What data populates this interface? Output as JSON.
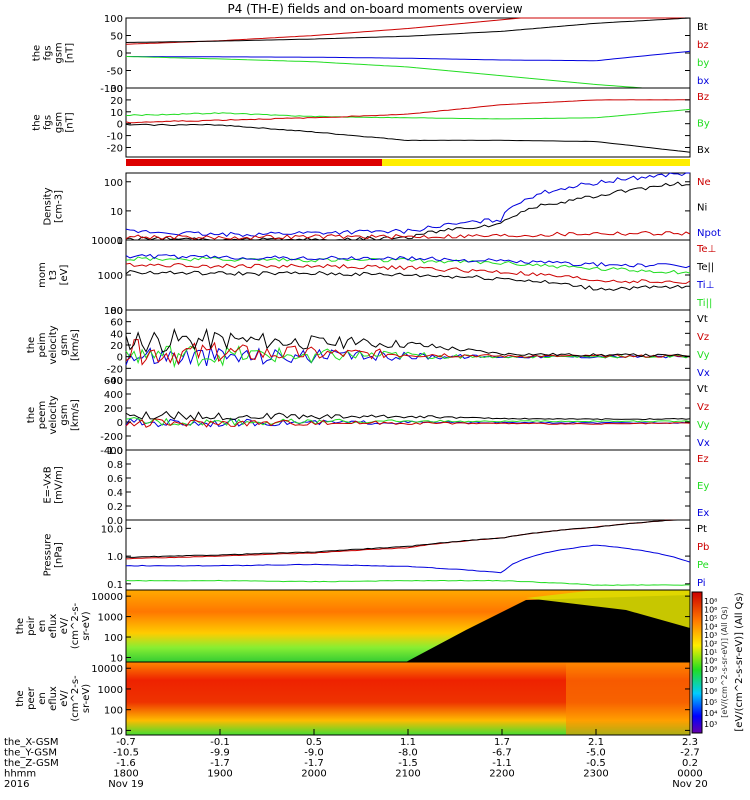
{
  "title": "P4 (TH-E) fields and on-board moments overview",
  "colors": {
    "black": "#000000",
    "red": "#cc0000",
    "green": "#22dd22",
    "blue": "#0000dd",
    "yellow": "#ffee00",
    "bar_red": "#dd0000"
  },
  "panels": [
    {
      "id": "fgs-gsm",
      "ylabel": [
        "the",
        "fgs",
        "gsm",
        "[nT]"
      ],
      "ticks": [
        "100",
        "50",
        "0",
        "-50",
        "-100"
      ],
      "tick_values": [
        100,
        50,
        0,
        -50,
        -100
      ],
      "ylim": [
        -100,
        100
      ],
      "legend": [
        {
          "label": "Bt",
          "color": "black"
        },
        {
          "label": "bz",
          "color": "red"
        },
        {
          "label": "by",
          "color": "green"
        },
        {
          "label": "bx",
          "color": "blue"
        }
      ]
    },
    {
      "id": "fgs-gsm-zoom",
      "ylabel": [
        "the",
        "fgs",
        "gsm",
        "[nT]"
      ],
      "ticks": [
        "30",
        "20",
        "10",
        "0",
        "-10",
        "-20"
      ],
      "tick_values": [
        30,
        20,
        10,
        0,
        -10,
        -20
      ],
      "ylim": [
        -28,
        30
      ],
      "legend": [
        {
          "label": "Bz",
          "color": "red"
        },
        {
          "label": "By",
          "color": "green"
        },
        {
          "label": "Bx",
          "color": "black"
        }
      ]
    },
    {
      "id": "density",
      "ylabel": [
        "Density",
        "[cm-3]"
      ],
      "ticks": [
        "100",
        "10",
        "1"
      ],
      "tick_values": [
        100,
        10,
        1
      ],
      "ylim": [
        1,
        200
      ],
      "log": true,
      "legend": [
        {
          "label": "Ne",
          "color": "red"
        },
        {
          "label": "Ni",
          "color": "black"
        },
        {
          "label": "Npot",
          "color": "blue"
        }
      ]
    },
    {
      "id": "temperature",
      "ylabel": [
        "mom",
        "t3",
        "[eV]"
      ],
      "ticks": [
        "10000",
        "1000",
        "100"
      ],
      "tick_values": [
        10000,
        1000,
        100
      ],
      "ylim": [
        100,
        10000
      ],
      "log": true,
      "legend": [
        {
          "label": "Te⊥",
          "color": "red"
        },
        {
          "label": "Te||",
          "color": "black"
        },
        {
          "label": "Ti⊥",
          "color": "blue"
        },
        {
          "label": "Ti||",
          "color": "green"
        }
      ]
    },
    {
      "id": "peim-velocity",
      "ylabel": [
        "the",
        "peim",
        "velocity",
        "gsm",
        "[km/s]"
      ],
      "ticks": [
        "80",
        "60",
        "40",
        "20",
        "0",
        "-20",
        "-40"
      ],
      "tick_values": [
        80,
        60,
        40,
        20,
        0,
        -20,
        -40
      ],
      "ylim": [
        -40,
        80
      ],
      "legend": [
        {
          "label": "Vt",
          "color": "black"
        },
        {
          "label": "Vz",
          "color": "red"
        },
        {
          "label": "Vy",
          "color": "green"
        },
        {
          "label": "Vx",
          "color": "blue"
        }
      ]
    },
    {
      "id": "peem-velocity",
      "ylabel": [
        "the",
        "peem",
        "velocity",
        "gsm",
        "[km/s]"
      ],
      "ticks": [
        "600",
        "400",
        "200",
        "0",
        "-200",
        "-400"
      ],
      "tick_values": [
        600,
        400,
        200,
        0,
        -200,
        -400
      ],
      "ylim": [
        -400,
        600
      ],
      "legend": [
        {
          "label": "Vt",
          "color": "black"
        },
        {
          "label": "Vz",
          "color": "red"
        },
        {
          "label": "Vy",
          "color": "green"
        },
        {
          "label": "Vx",
          "color": "blue"
        }
      ]
    },
    {
      "id": "efield",
      "ylabel": [
        "E=-VxB",
        "[mV/m]"
      ],
      "ticks": [
        "1.0",
        "0.8",
        "0.6",
        "0.4",
        "0.2",
        "0.0"
      ],
      "tick_values": [
        1.0,
        0.8,
        0.6,
        0.4,
        0.2,
        0.0
      ],
      "ylim": [
        0,
        1
      ],
      "legend": [
        {
          "label": "Ez",
          "color": "red"
        },
        {
          "label": "Ey",
          "color": "green"
        },
        {
          "label": "Ex",
          "color": "blue"
        }
      ]
    },
    {
      "id": "pressure",
      "ylabel": [
        "Pressure",
        "[nPa]"
      ],
      "ticks": [
        "10.0",
        "1.0",
        "0.1"
      ],
      "tick_values": [
        10,
        1,
        0.1
      ],
      "ylim": [
        0.06,
        20
      ],
      "log": true,
      "legend": [
        {
          "label": "Pt",
          "color": "black"
        },
        {
          "label": "Pb",
          "color": "red"
        },
        {
          "label": "Pe",
          "color": "green"
        },
        {
          "label": "Pi",
          "color": "blue"
        }
      ]
    },
    {
      "id": "peir-eflux",
      "ylabel": [
        "the",
        "peir",
        "en",
        "eflux",
        "eV/",
        "(cm^2-s-",
        "sr-eV)"
      ],
      "ticks": [
        "10000",
        "1000",
        "100",
        "10"
      ],
      "tick_values": [
        10000,
        1000,
        100,
        10
      ],
      "ylim": [
        6,
        20000
      ],
      "log": true,
      "legend": []
    },
    {
      "id": "peer-eflux",
      "ylabel": [
        "the",
        "peer",
        "en",
        "eflux",
        "eV/",
        "(cm^2-s-",
        "sr-eV)"
      ],
      "ticks": [
        "10000",
        "1000",
        "100",
        "10"
      ],
      "tick_values": [
        10000,
        1000,
        100,
        10
      ],
      "ylim": [
        6,
        20000
      ],
      "log": true,
      "legend": []
    }
  ],
  "colorbar": {
    "label": "[eV/(cm^2-s-sr-eV)] (All Qs)",
    "overlay_label": "[eV/(cm^2-s-sr-eV)] (All Qs)",
    "ticks_upper": [
      "10⁸",
      "10⁶",
      "10⁵",
      "10⁴",
      "10³",
      "10²",
      "10¹",
      "10⁰"
    ],
    "ticks_lower": [
      "10⁸",
      "10⁷",
      "10⁶",
      "10⁵",
      "10⁴",
      "10³"
    ]
  },
  "xaxis": {
    "row_labels": [
      "the_X-GSM",
      "the_Y-GSM",
      "the_Z-GSM",
      "hhmm",
      "2016"
    ],
    "columns": [
      [
        "-0.7",
        "-10.5",
        "-1.6",
        "1800",
        "Nov 19"
      ],
      [
        "-0.1",
        "-9.9",
        "-1.7",
        "1900",
        ""
      ],
      [
        "0.5",
        "-9.0",
        "-1.7",
        "2000",
        ""
      ],
      [
        "1.1",
        "-8.0",
        "-1.5",
        "2100",
        ""
      ],
      [
        "1.7",
        "-6.7",
        "-1.1",
        "2200",
        ""
      ],
      [
        "2.1",
        "-5.0",
        "-0.5",
        "2300",
        ""
      ],
      [
        "2.3",
        "-2.7",
        "0.2",
        "0000",
        "Nov 20"
      ]
    ]
  },
  "chart_data": {
    "type": "line",
    "time_range": [
      "2016-11-19 18:00",
      "2016-11-20 00:00"
    ],
    "time_ticks": [
      "1800",
      "1900",
      "2000",
      "2100",
      "2200",
      "2300",
      "0000"
    ],
    "series": {
      "fgs": {
        "Bt": [
          30,
          34,
          40,
          48,
          62,
          85,
          100
        ],
        "bz": [
          25,
          35,
          50,
          70,
          95,
          120,
          140
        ],
        "by": [
          -10,
          -17,
          -25,
          -40,
          -65,
          -90,
          -110
        ],
        "bx": [
          -10,
          -11,
          -12,
          -15,
          -20,
          -22,
          5
        ]
      },
      "fgs_zoom": {
        "Bz": [
          1,
          3,
          5,
          8,
          16,
          20,
          20
        ],
        "By": [
          7,
          9,
          6,
          5,
          4,
          5,
          12
        ],
        "Bx": [
          -1,
          -1,
          -7,
          -14,
          -14,
          -15,
          -24
        ]
      },
      "density": {
        "Ne": [
          1.3,
          1.2,
          1.3,
          1.3,
          1.4,
          1.7,
          1.7
        ],
        "Ni": [
          1.1,
          1.0,
          1.0,
          1.2,
          3.5,
          30,
          90
        ],
        "Npot": [
          2.0,
          1.5,
          1.8,
          2.0,
          5,
          90,
          200
        ]
      },
      "temperature": {
        "Te_perp": [
          2000,
          1800,
          1800,
          1600,
          1200,
          700,
          600
        ],
        "Te_par": [
          1200,
          1100,
          1100,
          1000,
          800,
          400,
          450
        ],
        "Ti_perp": [
          3500,
          3200,
          3000,
          3000,
          2500,
          2000,
          1800
        ],
        "Ti_par": [
          3000,
          2800,
          2700,
          2600,
          2200,
          1500,
          1200
        ]
      },
      "peim_velocity": {
        "Vt": [
          28,
          30,
          25,
          22,
          5,
          3,
          2
        ],
        "Vz": [
          8,
          6,
          5,
          5,
          1,
          1,
          1
        ],
        "Vy": [
          3,
          2,
          2,
          2,
          0,
          0,
          0
        ],
        "Vx": [
          2,
          1,
          1,
          1,
          0,
          0,
          0
        ]
      },
      "peem_velocity": {
        "Vt": [
          90,
          85,
          80,
          80,
          50,
          40,
          45
        ],
        "Vz": [
          -20,
          -15,
          -10,
          -15,
          -20,
          -30,
          -15
        ],
        "Vy": [
          10,
          5,
          5,
          10,
          10,
          10,
          10
        ],
        "Vx": [
          -10,
          -10,
          -10,
          -5,
          -10,
          -15,
          -10
        ]
      },
      "pressure": {
        "Pt": [
          0.9,
          1.1,
          1.4,
          2.2,
          4.5,
          11,
          22
        ],
        "Pb": [
          0.8,
          1.0,
          1.3,
          2.0,
          4.5,
          11,
          22
        ],
        "Pe": [
          0.13,
          0.13,
          0.12,
          0.13,
          0.13,
          0.09,
          0.09
        ],
        "Pi": [
          0.45,
          0.45,
          0.5,
          0.42,
          0.25,
          2.5,
          0.6
        ]
      }
    }
  }
}
